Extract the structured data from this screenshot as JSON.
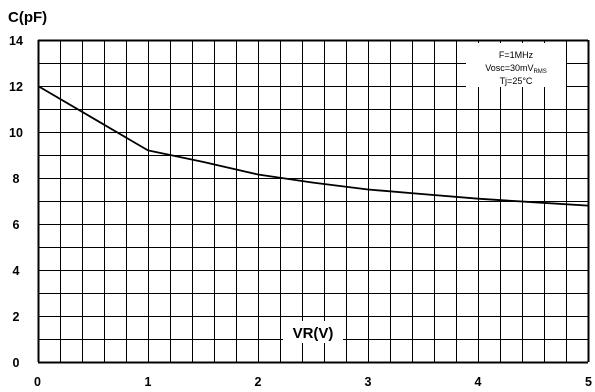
{
  "chart_data": {
    "type": "line",
    "title": "",
    "xlabel": "VR(V)",
    "ylabel": "C(pF)",
    "xlim": [
      0,
      5
    ],
    "ylim": [
      0,
      14
    ],
    "xticks": [
      0,
      1,
      2,
      3,
      4,
      5
    ],
    "yticks": [
      0,
      2,
      4,
      6,
      8,
      10,
      12,
      14
    ],
    "grid": true,
    "grid_minor": {
      "x_divisions_per_major": 5,
      "y_divisions_per_major": 2
    },
    "annotations": {
      "freq": "F=1MHz",
      "vosc_main": "Vosc=30mV",
      "vosc_sub": "RMS",
      "tj": "Tj=25°C"
    },
    "series": [
      {
        "x": [
          0,
          0.5,
          1,
          1.5,
          2,
          2.5,
          3,
          3.5,
          4,
          4.5,
          5
        ],
        "y": [
          12.0,
          10.6,
          9.2,
          8.7,
          8.15,
          7.8,
          7.5,
          7.3,
          7.1,
          6.95,
          6.8
        ]
      }
    ],
    "colors": {
      "line": "#000000",
      "grid": "#000000",
      "background": "#ffffff"
    }
  }
}
